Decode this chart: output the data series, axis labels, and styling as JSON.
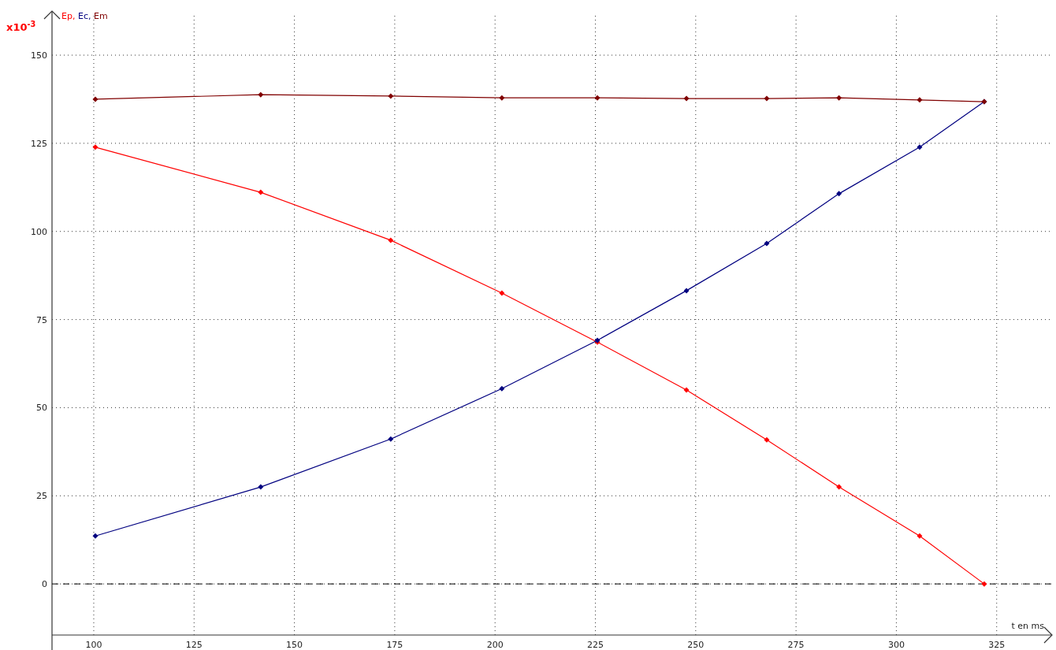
{
  "chart_data": {
    "type": "line",
    "xlabel": "t en ms",
    "ylabel": "Ep, Ec, Em",
    "annotations": [
      "x10$^{-3}$"
    ],
    "series": [
      {
        "color": "#ff0000",
        "x": [
          100.4,
          141.6,
          174.0,
          201.7,
          225.5,
          247.7,
          267.7,
          285.7,
          305.8,
          321.9
        ],
        "values": [
          123.9,
          111.1,
          97.5,
          82.5,
          68.6,
          55.0,
          40.9,
          27.5,
          13.6,
          0
        ]
      },
      {
        "color": "#000080",
        "x": [
          100.4,
          141.6,
          174.0,
          201.7,
          225.5,
          247.7,
          267.7,
          285.7,
          305.8,
          321.9
        ],
        "values": [
          13.6,
          27.5,
          41.1,
          55.4,
          69.1,
          83.2,
          96.6,
          110.7,
          123.9,
          136.8
        ]
      },
      {
        "color": "#800000",
        "x": [
          100.4,
          141.6,
          174.0,
          201.7,
          225.5,
          247.7,
          267.7,
          285.7,
          305.8,
          321.9
        ],
        "values": [
          137.5,
          138.8,
          138.4,
          137.9,
          137.9,
          137.7,
          137.7,
          137.9,
          137.3,
          136.8
        ]
      }
    ],
    "xlim": [
      89.6,
      338.8
    ],
    "ylim": [
      -14.5,
      162.3
    ],
    "xticks": [
      100,
      125,
      150,
      175,
      200,
      225,
      250,
      275,
      300,
      325
    ],
    "yticks": [
      0,
      25,
      50,
      75,
      100,
      125,
      150
    ],
    "ref_lines": [
      {
        "axis": "y",
        "value": 0,
        "color": "#000000",
        "line_style": "dashed"
      }
    ],
    "grid": true,
    "marker": "diamond",
    "line_style": "solid"
  }
}
